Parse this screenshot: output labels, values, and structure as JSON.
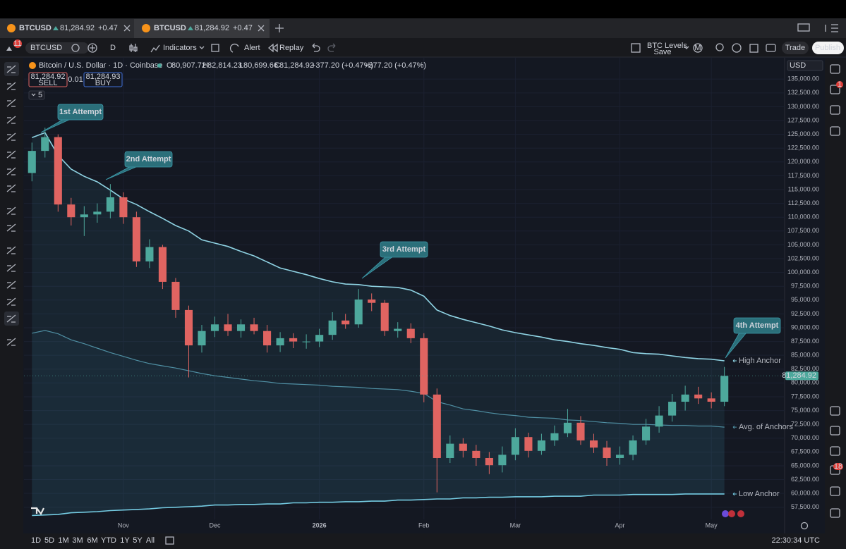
{
  "tabs": [
    {
      "symbol": "BTCUSD",
      "price": "81,284.92",
      "change": "+0.47"
    },
    {
      "symbol": "BTCUSD",
      "price": "81,284.92",
      "change": "+0.47"
    }
  ],
  "toolbar": {
    "badge": "11",
    "symbol": "BTCUSD",
    "interval": "D",
    "indicators": "Indicators",
    "alert": "Alert",
    "replay": "Replay",
    "layout_name": "BTC Levels",
    "layout_status": "Save",
    "account": "M",
    "trade": "Trade",
    "publish": "Publish"
  },
  "legend": {
    "title": "Bitcoin / U.S. Dollar · 1D · Coinbase",
    "o_key": "O",
    "o": "80,907.72",
    "h_key": "H",
    "h": "82,814.23",
    "l_key": "L",
    "l": "80,699.66",
    "c_key": "C",
    "c": "81,284.92",
    "change": "+377.20 (+0.47%)",
    "change2": "+377.20 (+0.47%)",
    "sell_price": "81,284.92",
    "sell": "SELL",
    "spread": "0.01",
    "buy_price": "81,284.93",
    "buy": "BUY",
    "indicators_count": "5"
  },
  "currency": "USD",
  "right_panel": {
    "alerts_badge": "1",
    "notifications_badge": "18"
  },
  "bottom": {
    "ranges": [
      "1D",
      "5D",
      "1M",
      "3M",
      "6M",
      "YTD",
      "1Y",
      "5Y",
      "All"
    ],
    "time": "22:30:34 UTC"
  },
  "chart_data": {
    "type": "candlestick",
    "categories": [
      null,
      null,
      null,
      null,
      null,
      null,
      null,
      "Nov",
      null,
      null,
      null,
      null,
      null,
      null,
      "Dec",
      null,
      null,
      null,
      null,
      null,
      null,
      null,
      "2026",
      null,
      null,
      null,
      null,
      null,
      null,
      null,
      "Feb",
      null,
      null,
      null,
      null,
      null,
      null,
      "Mar",
      null,
      null,
      null,
      null,
      null,
      null,
      null,
      "Apr",
      null,
      null,
      null,
      null,
      null,
      null,
      "May",
      null,
      null,
      null,
      null,
      null
    ],
    "open": [
      118000,
      122000,
      124500,
      112300,
      110000,
      110500,
      111000,
      113600,
      110000,
      102000,
      104600,
      98300,
      93200,
      86800,
      89400,
      90600,
      89400,
      90600,
      89400,
      86800,
      88100,
      87500,
      87500,
      88700,
      91300,
      90600,
      95100,
      94500,
      89400,
      89800,
      88100,
      77900,
      66400,
      69000,
      67700,
      66400,
      65100,
      67000,
      70200,
      67700,
      69600,
      70900,
      72800,
      69600,
      68300,
      66400,
      67000,
      69600,
      72100,
      74100,
      76600,
      77900,
      77200,
      76600,
      null,
      null,
      null,
      null
    ],
    "high": [
      123500,
      126200,
      125000,
      113500,
      112000,
      112500,
      116000,
      114500,
      111000,
      106000,
      105000,
      99000,
      94000,
      90500,
      92000,
      92500,
      91500,
      91800,
      90500,
      89200,
      89000,
      88800,
      89800,
      92800,
      92500,
      97000,
      96200,
      95000,
      91000,
      90800,
      89000,
      79000,
      70500,
      70000,
      68800,
      67500,
      68500,
      71800,
      71000,
      70800,
      72300,
      75300,
      74000,
      70800,
      69500,
      68500,
      70500,
      73500,
      75800,
      78000,
      79500,
      79300,
      78300,
      82900,
      null,
      null,
      null,
      null
    ],
    "low": [
      116500,
      120800,
      111000,
      108500,
      106600,
      109000,
      109800,
      108800,
      101000,
      100800,
      97000,
      91800,
      81000,
      85500,
      88300,
      88500,
      88200,
      88800,
      85500,
      85600,
      86300,
      86200,
      86500,
      87800,
      89800,
      90000,
      93000,
      88500,
      88200,
      87200,
      76500,
      60200,
      65500,
      66500,
      65000,
      63500,
      63800,
      66000,
      66500,
      67000,
      68600,
      70200,
      68800,
      67300,
      65000,
      65200,
      66000,
      68800,
      71000,
      73000,
      75000,
      76200,
      75400,
      75800,
      null,
      null,
      null,
      null
    ],
    "close": [
      122000,
      124500,
      112300,
      110000,
      110500,
      111000,
      113600,
      110000,
      102000,
      104600,
      98300,
      93200,
      86800,
      89400,
      90600,
      89400,
      90600,
      89400,
      86800,
      88100,
      87500,
      87500,
      88700,
      91300,
      90600,
      95100,
      94500,
      89400,
      89800,
      88100,
      77900,
      66400,
      69000,
      67700,
      66400,
      65100,
      67000,
      70200,
      67700,
      69600,
      70900,
      72800,
      69600,
      68300,
      66400,
      67000,
      69600,
      72100,
      74100,
      76600,
      77900,
      77200,
      76600,
      81284.92,
      null,
      null,
      null,
      null
    ],
    "up_color": "#4da89c",
    "down_color": "#e06461",
    "last_price": {
      "value": 81284.92,
      "label": "81,284.92"
    },
    "series": [
      {
        "name": "High Anchor",
        "color": "#8fd3e3",
        "values": [
          124400,
          125300,
          121200,
          118700,
          117400,
          116400,
          114900,
          113300,
          112300,
          111000,
          109800,
          108500,
          107500,
          105900,
          105300,
          104700,
          103800,
          103000,
          101900,
          100800,
          100200,
          99600,
          98900,
          98300,
          97900,
          97800,
          97500,
          97400,
          97300,
          96800,
          95700,
          93200,
          92200,
          91500,
          90900,
          90300,
          89600,
          89100,
          88700,
          88300,
          87800,
          87500,
          87100,
          86800,
          86400,
          86100,
          85500,
          85300,
          85200,
          84900,
          84600,
          84400,
          84300,
          84000,
          null,
          null,
          null,
          null
        ]
      },
      {
        "name": "Avg. of Anchors",
        "color": "#4f8fa3",
        "values": [
          89000,
          89500,
          88900,
          87800,
          87100,
          86300,
          85500,
          84800,
          84100,
          83500,
          83100,
          82700,
          82200,
          81700,
          81300,
          81000,
          80700,
          80400,
          80200,
          79900,
          79800,
          79700,
          79600,
          79400,
          79300,
          79200,
          79000,
          78900,
          78800,
          78500,
          78100,
          76600,
          76000,
          75300,
          75000,
          74600,
          74300,
          74100,
          73800,
          73700,
          73600,
          73300,
          73200,
          73000,
          72800,
          72700,
          72500,
          72500,
          72400,
          72300,
          72300,
          72200,
          72200,
          72000,
          null,
          null,
          null,
          null
        ]
      },
      {
        "name": "Low Anchor",
        "color": "#74cbe2",
        "values": [
          56000,
          56100,
          56200,
          56500,
          56600,
          56700,
          56900,
          57000,
          57100,
          57200,
          57400,
          57500,
          57600,
          57700,
          57900,
          57900,
          58000,
          58000,
          58100,
          58100,
          58300,
          58300,
          58400,
          58400,
          58500,
          58500,
          58600,
          58600,
          58800,
          58800,
          58900,
          59000,
          59000,
          59200,
          59200,
          59300,
          59300,
          59400,
          59400,
          59400,
          59500,
          59500,
          59500,
          59700,
          59700,
          59700,
          59800,
          59800,
          59800,
          59800,
          59900,
          59900,
          59900,
          59900,
          null,
          null,
          null,
          null
        ]
      }
    ],
    "annotations": [
      {
        "text": "1st Attempt"
      },
      {
        "text": "2nd Attempt"
      },
      {
        "text": "3rd Attempt"
      },
      {
        "text": "4th Attempt"
      }
    ],
    "ylim": [
      55300,
      138600
    ],
    "yticks": [
      {
        "value": 57500,
        "label": "57,500.00"
      },
      {
        "value": 60000,
        "label": "60,000.00"
      },
      {
        "value": 62500,
        "label": "62,500.00"
      },
      {
        "value": 65000,
        "label": "65,000.00"
      },
      {
        "value": 67500,
        "label": "67,500.00"
      },
      {
        "value": 70000,
        "label": "70,000.00"
      },
      {
        "value": 72500,
        "label": "72,500.00"
      },
      {
        "value": 75000,
        "label": "75,000.00"
      },
      {
        "value": 77500,
        "label": "77,500.00"
      },
      {
        "value": 80000,
        "label": "80,000.00"
      },
      {
        "value": 82500,
        "label": "82,500.00"
      },
      {
        "value": 85000,
        "label": "85,000.00"
      },
      {
        "value": 87500,
        "label": "87,500.00"
      },
      {
        "value": 90000,
        "label": "90,000.00"
      },
      {
        "value": 92500,
        "label": "92,500.00"
      },
      {
        "value": 95000,
        "label": "95,000.00"
      },
      {
        "value": 97500,
        "label": "97,500.00"
      },
      {
        "value": 100000,
        "label": "100,000.00"
      },
      {
        "value": 102500,
        "label": "102,500.00"
      },
      {
        "value": 105000,
        "label": "105,000.00"
      },
      {
        "value": 107500,
        "label": "107,500.00"
      },
      {
        "value": 110000,
        "label": "110,000.00"
      },
      {
        "value": 112500,
        "label": "112,500.00"
      },
      {
        "value": 115000,
        "label": "115,000.00"
      },
      {
        "value": 117500,
        "label": "117,500.00"
      },
      {
        "value": 120000,
        "label": "120,000.00"
      },
      {
        "value": 122500,
        "label": "122,500.00"
      },
      {
        "value": 125000,
        "label": "125,000.00"
      },
      {
        "value": 127500,
        "label": "127,500.00"
      },
      {
        "value": 130000,
        "label": "130,000.00"
      },
      {
        "value": 132500,
        "label": "132,500.00"
      },
      {
        "value": 135000,
        "label": "135,000.00"
      }
    ],
    "grid": true
  }
}
